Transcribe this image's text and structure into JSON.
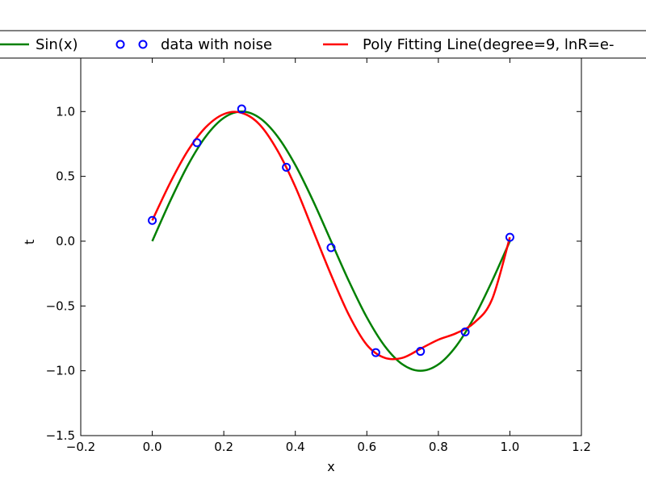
{
  "chart_data": {
    "type": "line",
    "title": "",
    "xlabel": "x",
    "ylabel": "t",
    "xlim": [
      -0.2,
      1.2
    ],
    "ylim": [
      -1.5,
      1.4
    ],
    "xticks": [
      -0.2,
      0.0,
      0.2,
      0.4,
      0.6,
      0.8,
      1.0,
      1.2
    ],
    "xtick_labels": [
      "−0.2",
      "0.0",
      "0.2",
      "0.4",
      "0.6",
      "0.8",
      "1.0",
      "1.2"
    ],
    "yticks": [
      -1.5,
      -1.0,
      -0.5,
      0.0,
      0.5,
      1.0
    ],
    "ytick_labels": [
      "−1.5",
      "−1.0",
      "−0.5",
      "0.0",
      "0.5",
      "1.0"
    ],
    "grid": false,
    "legend_position": "top (outside plot, spanning figure width)",
    "series": [
      {
        "name": "Sin(x)",
        "type": "line",
        "color": "#008000",
        "x": [
          0.0,
          0.05,
          0.1,
          0.15,
          0.2,
          0.25,
          0.3,
          0.35,
          0.4,
          0.45,
          0.5,
          0.55,
          0.6,
          0.65,
          0.7,
          0.75,
          0.8,
          0.85,
          0.9,
          0.95,
          1.0
        ],
        "y": [
          0.0,
          0.309,
          0.588,
          0.809,
          0.951,
          1.0,
          0.951,
          0.809,
          0.588,
          0.309,
          0.0,
          -0.309,
          -0.588,
          -0.809,
          -0.951,
          -1.0,
          -0.951,
          -0.809,
          -0.588,
          -0.309,
          0.0
        ]
      },
      {
        "name": "data with noise",
        "type": "scatter",
        "color": "#0000ff",
        "x": [
          0.0,
          0.125,
          0.25,
          0.375,
          0.5,
          0.625,
          0.75,
          0.875,
          1.0
        ],
        "y": [
          0.16,
          0.76,
          1.02,
          0.57,
          -0.05,
          -0.86,
          -0.85,
          -0.7,
          0.03
        ]
      },
      {
        "name": "Poly Fitting Line(degree=9, lnR=e-",
        "type": "line",
        "color": "#ff0000",
        "x": [
          0.0,
          0.05,
          0.1,
          0.15,
          0.2,
          0.25,
          0.3,
          0.35,
          0.4,
          0.45,
          0.5,
          0.55,
          0.6,
          0.65,
          0.7,
          0.75,
          0.8,
          0.85,
          0.9,
          0.95,
          1.0
        ],
        "y": [
          0.16,
          0.45,
          0.7,
          0.88,
          0.98,
          0.99,
          0.9,
          0.7,
          0.42,
          0.08,
          -0.26,
          -0.57,
          -0.8,
          -0.9,
          -0.9,
          -0.83,
          -0.76,
          -0.71,
          -0.63,
          -0.45,
          0.03
        ]
      }
    ]
  }
}
